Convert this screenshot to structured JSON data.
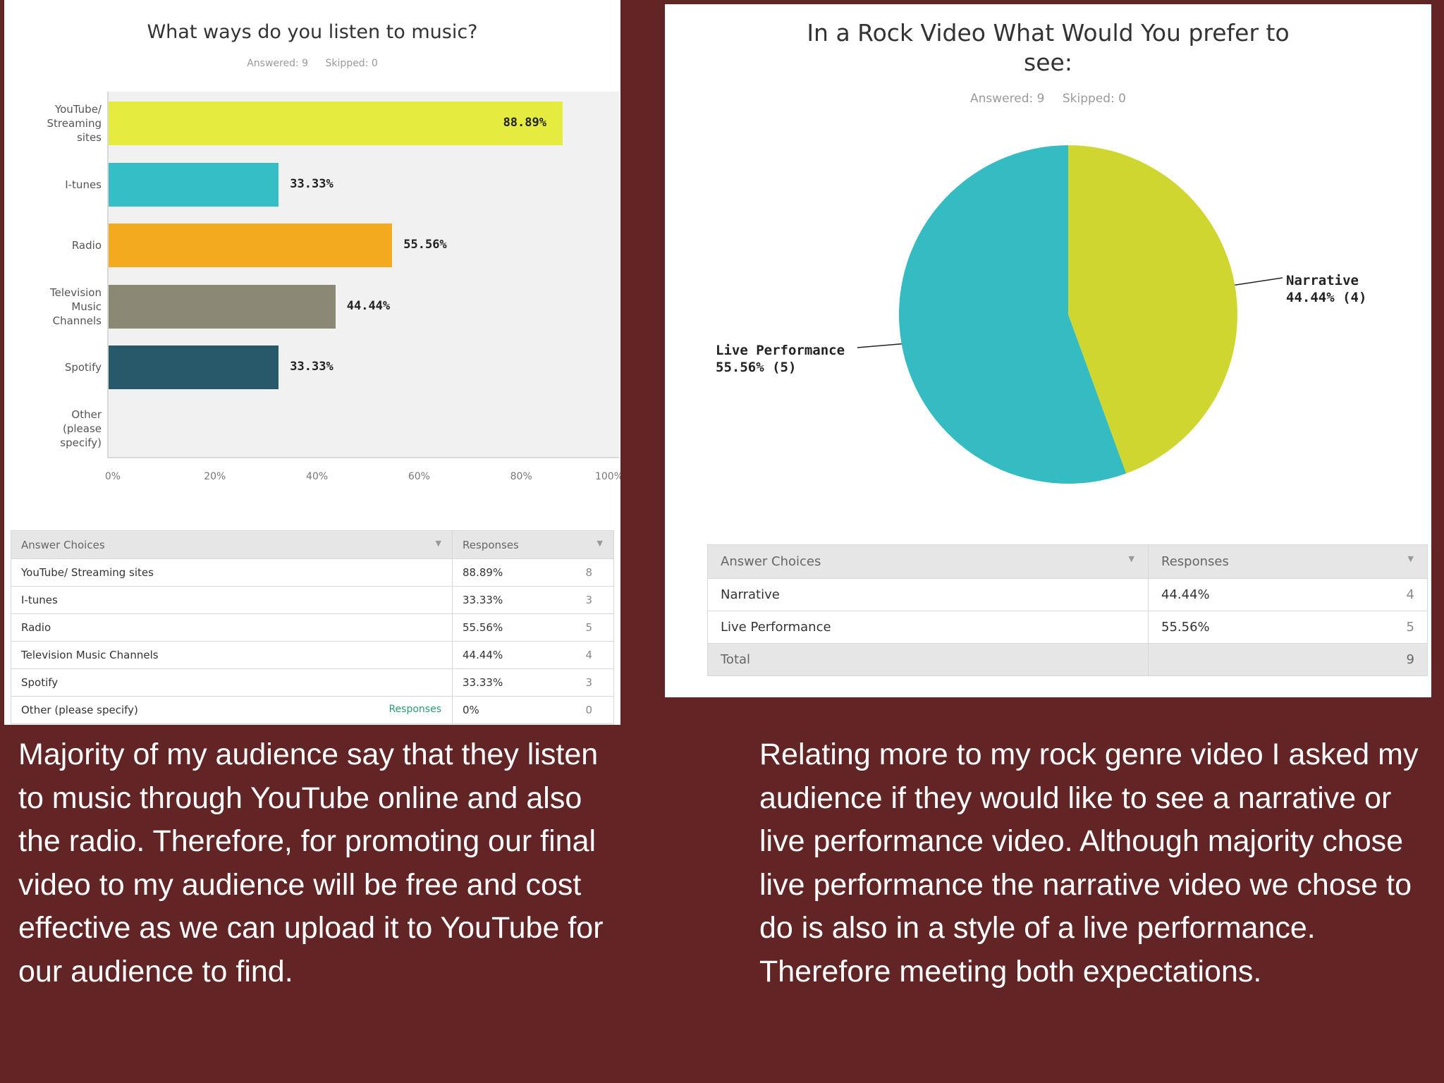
{
  "colors": {
    "background": "#632425",
    "yellow_green": "#e5ec3f",
    "teal": "#35bec6",
    "orange": "#f4aa1e",
    "gray": "#8c8876",
    "dark_teal": "#27596a",
    "pie_narrative": "#cfd62f",
    "pie_live": "#35bcc3"
  },
  "left_chart": {
    "title": "What ways do you listen to music?",
    "answered": "Answered: 9",
    "skipped": "Skipped: 0"
  },
  "right_chart": {
    "title_line1": "In a Rock Video What Would You prefer to",
    "title_line2": "see:",
    "answered": "Answered: 9",
    "skipped": "Skipped: 0"
  },
  "chart_data": [
    {
      "type": "bar",
      "title": "What ways do you listen to music?",
      "categories": [
        "YouTube/ Streaming sites",
        "I-tunes",
        "Radio",
        "Television Music Channels",
        "Spotify",
        "Other (please specify)"
      ],
      "category_lines": [
        [
          "YouTube/",
          "Streaming",
          "sites"
        ],
        [
          "I-tunes"
        ],
        [
          "Radio"
        ],
        [
          "Television",
          "Music",
          "Channels"
        ],
        [
          "Spotify"
        ],
        [
          "Other",
          "(please",
          "specify)"
        ]
      ],
      "values": [
        88.89,
        33.33,
        55.56,
        44.44,
        33.33,
        0
      ],
      "value_labels": [
        "88.89%",
        "33.33%",
        "55.56%",
        "44.44%",
        "33.33%",
        ""
      ],
      "colors": [
        "#e5ec3f",
        "#35bec6",
        "#f4aa1e",
        "#8c8876",
        "#27596a",
        "#cccccc"
      ],
      "xlim": [
        0,
        100
      ],
      "xticks": [
        "0%",
        "20%",
        "40%",
        "60%",
        "80%",
        "100%"
      ],
      "grid": false
    },
    {
      "type": "pie",
      "title": "In a Rock Video What Would You prefer to see:",
      "labels": [
        "Narrative",
        "Live Performance"
      ],
      "values": [
        44.44,
        55.56
      ],
      "counts": [
        4,
        5
      ],
      "value_labels": [
        "44.44% (4)",
        "55.56% (5)"
      ],
      "colors": [
        "#cfd62f",
        "#35bcc3"
      ]
    }
  ],
  "left_table": {
    "col_answer": "Answer Choices",
    "col_responses": "Responses",
    "rows": [
      {
        "choice": "YouTube/ Streaming sites",
        "percent": "88.89%",
        "count": "8"
      },
      {
        "choice": "I-tunes",
        "percent": "33.33%",
        "count": "3"
      },
      {
        "choice": "Radio",
        "percent": "55.56%",
        "count": "5"
      },
      {
        "choice": "Television Music Channels",
        "percent": "44.44%",
        "count": "4"
      },
      {
        "choice": "Spotify",
        "percent": "33.33%",
        "count": "3"
      },
      {
        "choice": "Other (please specify)",
        "percent": "0%",
        "count": "0"
      }
    ],
    "responses_link": "Responses"
  },
  "right_table": {
    "col_answer": "Answer Choices",
    "col_responses": "Responses",
    "rows": [
      {
        "choice": "Narrative",
        "percent": "44.44%",
        "count": "4"
      },
      {
        "choice": "Live Performance",
        "percent": "55.56%",
        "count": "5"
      }
    ],
    "total_label": "Total",
    "total_value": "9"
  },
  "left_text": "Majority of my audience say that they listen to music through YouTube online and also the radio. Therefore, for promoting our final video to my audience will be free and cost effective as we can upload it to YouTube for our audience to find.",
  "right_text": "Relating more to my rock genre video I asked my audience if they would like to see a narrative or live performance video. Although majority chose live performance the narrative video we chose to do is also in a style of a live performance. Therefore meeting both expectations."
}
